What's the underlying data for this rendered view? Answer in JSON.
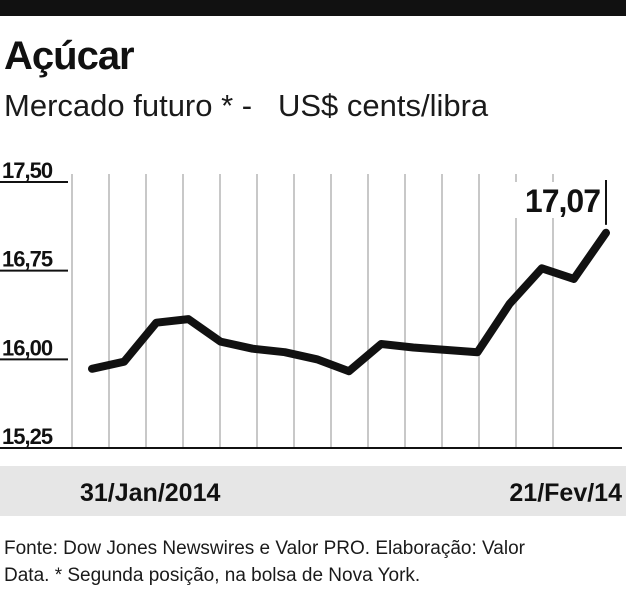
{
  "title": "Açúcar",
  "subtitle": {
    "part1": "Mercado futuro * -",
    "part2": "US$ cents/libra"
  },
  "chart_data": {
    "type": "line",
    "ylim": [
      15.25,
      17.5
    ],
    "yticks": [
      "17,50",
      "16,75",
      "16,00",
      "15,25"
    ],
    "ytick_values": [
      17.5,
      16.75,
      16.0,
      15.25
    ],
    "start_label": "31/Jan/2014",
    "end_label": "21/Fev/14",
    "last_value_label": "17,07",
    "grid": "vertical",
    "series": [
      {
        "values": [
          15.92,
          15.98,
          16.31,
          16.34,
          16.15,
          16.09,
          16.06,
          16.0,
          15.9,
          16.13,
          16.1,
          16.08,
          16.06,
          16.47,
          16.77,
          16.68,
          17.07
        ]
      }
    ]
  },
  "footnote": {
    "line1": "Fonte: Dow Jones Newswires e Valor PRO. Elaboração: Valor",
    "line2": "Data. * Segunda posição, na bolsa de Nova York."
  },
  "colors": {
    "line": "#111111",
    "grid": "#c8c8c8",
    "band": "#e6e6e6"
  }
}
